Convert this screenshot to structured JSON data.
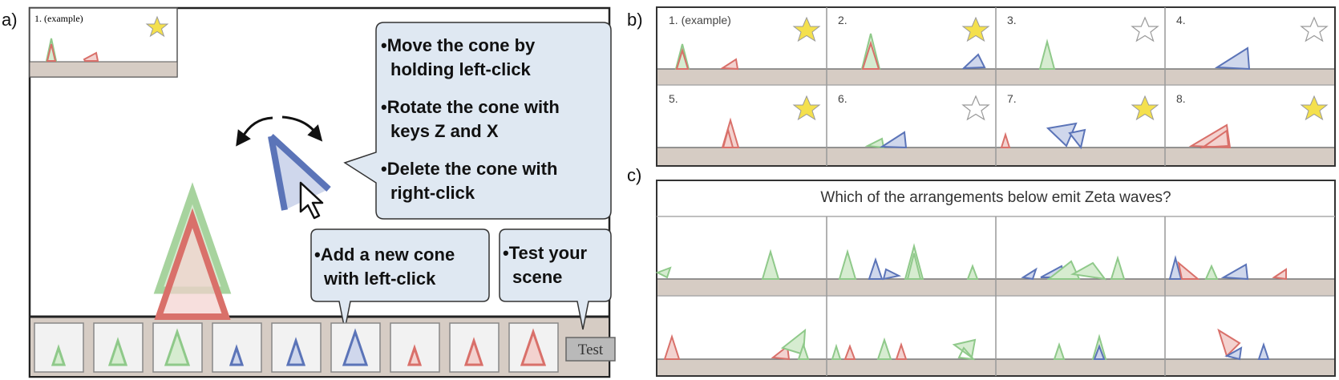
{
  "panels": {
    "a": "a)",
    "b": "b)",
    "c": "c)"
  },
  "panel_a": {
    "example_label": "1. (example)",
    "callouts": {
      "main": [
        "•Move the cone by",
        "holding left-click",
        "•Rotate the cone with",
        "keys Z and X",
        "•Delete the cone with",
        "right-click"
      ],
      "add": [
        "•Add a new cone",
        "with left-click"
      ],
      "test": [
        "•Test your",
        "scene"
      ]
    },
    "test_button": "Test",
    "palette": [
      {
        "color": "green",
        "size": "small"
      },
      {
        "color": "green",
        "size": "medium"
      },
      {
        "color": "green",
        "size": "large"
      },
      {
        "color": "blue",
        "size": "small"
      },
      {
        "color": "blue",
        "size": "medium"
      },
      {
        "color": "blue",
        "size": "large"
      },
      {
        "color": "red",
        "size": "small"
      },
      {
        "color": "red",
        "size": "medium"
      },
      {
        "color": "red",
        "size": "large"
      }
    ]
  },
  "panel_b": {
    "scenes": [
      {
        "label": "1. (example)",
        "star": true
      },
      {
        "label": "2.",
        "star": true
      },
      {
        "label": "3.",
        "star": false
      },
      {
        "label": "4.",
        "star": false
      },
      {
        "label": "5.",
        "star": true
      },
      {
        "label": "6.",
        "star": false
      },
      {
        "label": "7.",
        "star": true
      },
      {
        "label": "8.",
        "star": true
      }
    ]
  },
  "panel_c": {
    "question": "Which of the arrangements below emit Zeta waves?"
  },
  "colors": {
    "green_stroke": "#8fc98a",
    "green_fill": "#d6ecd0",
    "red_stroke": "#d9706a",
    "red_fill": "#f3d2cf",
    "blue_stroke": "#5b74b8",
    "blue_fill": "#cfd7ec",
    "ground": "#d6ccc4",
    "callout_fill": "#dfe8f2",
    "star_yellow": "#f4e04d"
  }
}
